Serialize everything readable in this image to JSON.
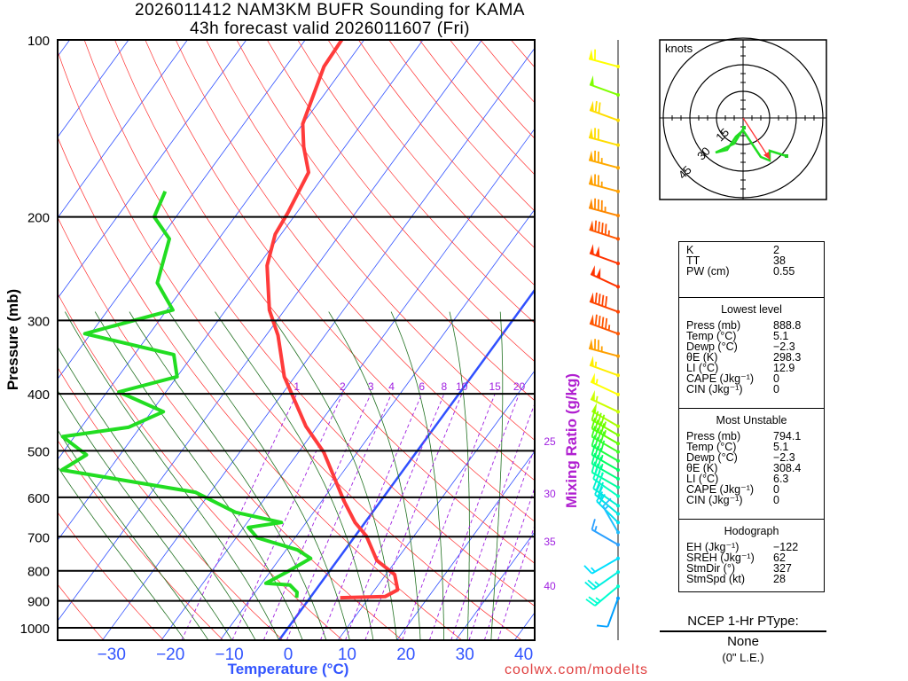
{
  "title": {
    "line1": "2026011412 NAM3KM BUFR Sounding for KAMA",
    "line2": "43h forecast valid 2026011607 (Fri)"
  },
  "credit": "coolwx.com/modelts",
  "chart_data": {
    "type": "skew-t",
    "ylabel": "Pressure (mb)",
    "xlabel": "Temperature (°C)",
    "mixing_ratio_label": "Mixing Ratio (g/kg)",
    "pressure_ticks": [
      "100",
      "200",
      "300",
      "400",
      "500",
      "600",
      "700",
      "800",
      "900",
      "1000"
    ],
    "pressure_values": [
      100,
      200,
      300,
      400,
      500,
      600,
      700,
      800,
      900,
      1000
    ],
    "temp_ticks": [
      -30,
      -20,
      -10,
      0,
      10,
      20,
      30,
      40
    ],
    "temp_tick_labels": [
      "−30",
      "−20",
      "−10",
      "0",
      "10",
      "20",
      "30",
      "40"
    ],
    "mixing_ratio_top": [
      "1",
      "2",
      "3",
      "4",
      "6",
      "8",
      "10",
      "15",
      "20"
    ],
    "mixing_ratio_top_values": [
      1,
      2,
      3,
      4,
      6,
      8,
      10,
      15,
      20
    ],
    "mixing_ratio_side": [
      "25",
      "30",
      "35",
      "40"
    ],
    "temperature": {
      "color": "#ff3b3b",
      "p": [
        889,
        885,
        862,
        812,
        768,
        698,
        662,
        608,
        503,
        454,
        374,
        318,
        288,
        242,
        214,
        197,
        168,
        152,
        139,
        111,
        100
      ],
      "t": [
        5.1,
        12.6,
        13.9,
        11.5,
        6.7,
        1.9,
        -1.7,
        -6.3,
        -15.7,
        -22,
        -31.8,
        -38,
        -42.6,
        -48.5,
        -51,
        -51.5,
        -53,
        -57,
        -60,
        -63.5,
        -63.8
      ]
    },
    "dewpoint": {
      "color": "#22dd22",
      "p": [
        889,
        870,
        846,
        840,
        805,
        762,
        737,
        703,
        675,
        662,
        636,
        588,
        539,
        508,
        473,
        456,
        429,
        397,
        374,
        343,
        316,
        288,
        259,
        218,
        200,
        181
      ],
      "t": [
        -2.3,
        -2.9,
        -5,
        -9.3,
        -7.2,
        -4.8,
        -8.1,
        -16.4,
        -19.2,
        -14.2,
        -23.3,
        -32.6,
        -58,
        -55.7,
        -62,
        -52,
        -48,
        -58,
        -50,
        -53.3,
        -71,
        -59,
        -65,
        -68.4,
        -73.7,
        -75
      ]
    },
    "winds": [
      [
        111,
        285,
        60,
        "#ffff00"
      ],
      [
        124,
        290,
        50,
        "#80ff00"
      ],
      [
        137,
        290,
        70,
        "#ffdd00"
      ],
      [
        151,
        285,
        70,
        "#ffdd00"
      ],
      [
        165,
        285,
        75,
        "#ffaa00"
      ],
      [
        181,
        285,
        75,
        "#ffa000"
      ],
      [
        199,
        285,
        85,
        "#ff8800"
      ],
      [
        218,
        288,
        95,
        "#ff5500"
      ],
      [
        240,
        290,
        100,
        "#ff3300"
      ],
      [
        263,
        295,
        100,
        "#ff3300"
      ],
      [
        290,
        290,
        90,
        "#ff4400"
      ],
      [
        316,
        290,
        95,
        "#ff5500"
      ],
      [
        345,
        285,
        75,
        "#ffa000"
      ],
      [
        372,
        290,
        55,
        "#ffee00"
      ],
      [
        401,
        295,
        55,
        "#ffff00"
      ],
      [
        429,
        295,
        55,
        "#ccff00"
      ],
      [
        454,
        300,
        50,
        "#aaff00"
      ],
      [
        470,
        300,
        45,
        "#80ff00"
      ],
      [
        486,
        300,
        45,
        "#60ff00"
      ],
      [
        502,
        300,
        40,
        "#40ff20"
      ],
      [
        520,
        300,
        40,
        "#20ff40"
      ],
      [
        539,
        300,
        35,
        "#00ff60"
      ],
      [
        558,
        300,
        35,
        "#00ff80"
      ],
      [
        577,
        300,
        35,
        "#00ffa0"
      ],
      [
        597,
        305,
        30,
        "#00ffc0"
      ],
      [
        620,
        305,
        30,
        "#00f0d0"
      ],
      [
        640,
        310,
        25,
        "#00e8e0"
      ],
      [
        662,
        315,
        20,
        "#00e0f0"
      ],
      [
        688,
        330,
        15,
        "#20c0ff"
      ],
      [
        722,
        300,
        15,
        "#2aa0ff"
      ],
      [
        762,
        240,
        15,
        "#00e0ff"
      ],
      [
        804,
        235,
        25,
        "#00f0e0"
      ],
      [
        850,
        230,
        25,
        "#00ffd0"
      ],
      [
        891,
        200,
        10,
        "#00a0ff"
      ]
    ]
  },
  "hodograph": {
    "units_label": "knots",
    "ring_labels": [
      "15",
      "30",
      "45"
    ],
    "u": [
      0.5,
      -5,
      -15.5,
      -9,
      -4,
      0,
      10,
      15,
      15,
      24.5
    ],
    "v": [
      -5.5,
      -14.5,
      -19.5,
      -18,
      -10.5,
      -7,
      -22,
      -24,
      -18.5,
      -21.5
    ],
    "storm_motion": {
      "dir": 327,
      "spd": 28,
      "color": "#ff3333"
    }
  },
  "indices": {
    "top": [
      {
        "k": "K",
        "v": "2"
      },
      {
        "k": "TT",
        "v": "38"
      },
      {
        "k": "PW (cm)",
        "v": "0.55"
      }
    ],
    "lowest": {
      "header": "Lowest level",
      "rows": [
        {
          "k": "Press (mb)",
          "v": "888.8"
        },
        {
          "k": "Temp (°C)",
          "v": "5.1"
        },
        {
          "k": "Dewp (°C)",
          "v": "−2.3"
        },
        {
          "k": "θE (K)",
          "v": "298.3"
        },
        {
          "k": "LI (°C)",
          "v": "12.9"
        },
        {
          "k": "CAPE (Jkg⁻¹)",
          "v": "0"
        },
        {
          "k": "CIN (Jkg⁻¹)",
          "v": "0"
        }
      ]
    },
    "unstable": {
      "header": "Most Unstable",
      "rows": [
        {
          "k": "Press (mb)",
          "v": "794.1"
        },
        {
          "k": "Temp (°C)",
          "v": "5.1"
        },
        {
          "k": "Dewp (°C)",
          "v": "−2.3"
        },
        {
          "k": "θE (K)",
          "v": "308.4"
        },
        {
          "k": "LI (°C)",
          "v": "6.3"
        },
        {
          "k": "CAPE (Jkg⁻¹)",
          "v": "0"
        },
        {
          "k": "CIN (Jkg⁻¹)",
          "v": "0"
        }
      ]
    },
    "hodo": {
      "header": "Hodograph",
      "rows": [
        {
          "k": "EH (Jkg⁻¹)",
          "v": "−122"
        },
        {
          "k": "SREH (Jkg⁻¹)",
          "v": "62"
        },
        {
          "k": "StmDir (°)",
          "v": "327"
        },
        {
          "k": "StmSpd (kt)",
          "v": "28"
        }
      ]
    }
  },
  "ptype": {
    "title": "NCEP 1-Hr PType:",
    "value": "None",
    "amount": "(0\" L.E.)"
  }
}
